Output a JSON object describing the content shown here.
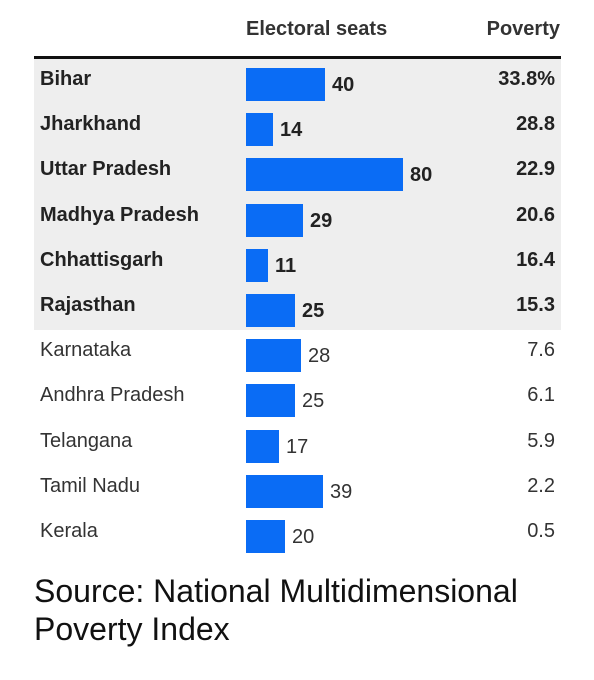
{
  "headers": {
    "seats": "Electoral seats",
    "poverty": "Poverty"
  },
  "source": "Source: National Multidimensional Poverty Index",
  "colors": {
    "bar": "#0a6cf5",
    "highlight_rows": "#eeeeee"
  },
  "chart_data": {
    "type": "table",
    "columns": [
      "Electoral seats",
      "Poverty"
    ],
    "bar_max_value": 80,
    "rows": [
      {
        "state": "Bihar",
        "seats": "40",
        "poverty": "33.8%",
        "highlight": true
      },
      {
        "state": "Jharkhand",
        "seats": "14",
        "poverty": "28.8",
        "highlight": true
      },
      {
        "state": "Uttar Pradesh",
        "seats": "80",
        "poverty": "22.9",
        "highlight": true
      },
      {
        "state": "Madhya Pradesh",
        "seats": "29",
        "poverty": "20.6",
        "highlight": true
      },
      {
        "state": "Chhattisgarh",
        "seats": "11",
        "poverty": "16.4",
        "highlight": true
      },
      {
        "state": "Rajasthan",
        "seats": "25",
        "poverty": "15.3",
        "highlight": true
      },
      {
        "state": "Karnataka",
        "seats": "28",
        "poverty": "7.6",
        "highlight": false
      },
      {
        "state": "Andhra Pradesh",
        "seats": "25",
        "poverty": "6.1",
        "highlight": false
      },
      {
        "state": "Telangana",
        "seats": "17",
        "poverty": "5.9",
        "highlight": false
      },
      {
        "state": "Tamil Nadu",
        "seats": "39",
        "poverty": "2.2",
        "highlight": false
      },
      {
        "state": "Kerala",
        "seats": "20",
        "poverty": "0.5",
        "highlight": false
      }
    ]
  }
}
